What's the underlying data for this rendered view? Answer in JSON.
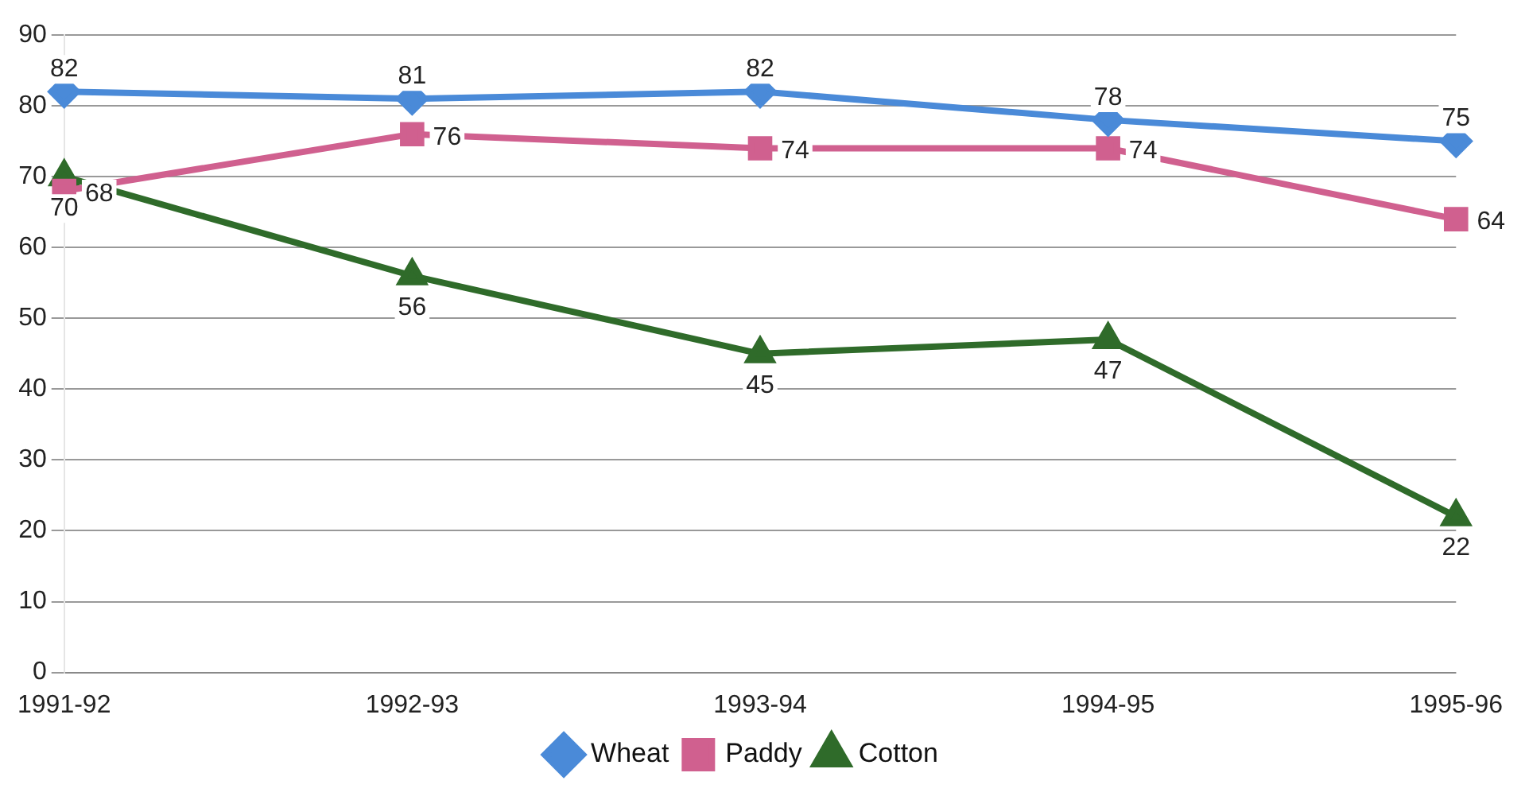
{
  "chart_data": {
    "type": "line",
    "categories": [
      "1991-92",
      "1992-93",
      "1993-94",
      "1994-95",
      "1995-96"
    ],
    "series": [
      {
        "name": "Wheat",
        "color": "#4a8ad8",
        "marker": "diamond",
        "values": [
          82,
          81,
          82,
          78,
          75
        ]
      },
      {
        "name": "Paddy",
        "color": "#d0608f",
        "marker": "square",
        "values": [
          68,
          76,
          74,
          74,
          64
        ]
      },
      {
        "name": "Cotton",
        "color": "#2f6b2a",
        "marker": "triangle",
        "values": [
          70,
          56,
          45,
          47,
          22
        ]
      }
    ],
    "ylim": [
      0,
      90
    ],
    "yticks": [
      0,
      10,
      20,
      30,
      40,
      50,
      60,
      70,
      80,
      90
    ],
    "grid": "y",
    "legend": "bottom",
    "data_labels": true
  }
}
